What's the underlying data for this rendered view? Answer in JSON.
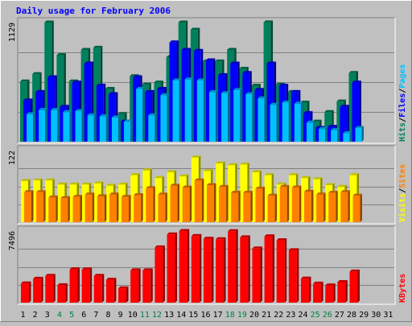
{
  "chart_data": {
    "type": "bar",
    "title": "Daily usage for February 2006",
    "days": [
      "1",
      "2",
      "3",
      "4",
      "5",
      "6",
      "7",
      "8",
      "9",
      "10",
      "11",
      "12",
      "13",
      "14",
      "15",
      "16",
      "17",
      "18",
      "19",
      "20",
      "21",
      "22",
      "23",
      "24",
      "25",
      "26",
      "27",
      "28",
      "29",
      "30",
      "31"
    ],
    "weekend_days": [
      "4",
      "5",
      "11",
      "12",
      "18",
      "19",
      "25",
      "26"
    ],
    "panels": [
      {
        "ymax_label": "1129",
        "ymax": 1129,
        "legend": [
          {
            "text": "Hits",
            "color": "#00805c"
          },
          {
            "sep": "/"
          },
          {
            "text": "Files",
            "color": "#0000ff"
          },
          {
            "sep": "/"
          },
          {
            "text": "Pages",
            "color": "#00c0ff"
          }
        ],
        "series": [
          {
            "name": "Hits",
            "color": "#00805c",
            "values": [
              570,
              640,
              1129,
              820,
              570,
              870,
              890,
              500,
              260,
              620,
              540,
              560,
              800,
              1129,
              1060,
              760,
              760,
              870,
              690,
              530,
              1130,
              540,
              470,
              370,
              190,
              280,
              380,
              650,
              0,
              0,
              0
            ]
          },
          {
            "name": "Files",
            "color": "#0000ff",
            "values": [
              390,
              470,
              610,
              330,
              560,
              740,
              530,
              450,
              190,
              610,
              470,
              500,
              940,
              870,
              860,
              770,
              630,
              740,
              650,
              490,
              740,
              530,
              470,
              270,
              130,
              140,
              330,
              560,
              0,
              0,
              0
            ]
          },
          {
            "name": "Pages",
            "color": "#00c0ff",
            "values": [
              260,
              300,
              300,
              280,
              290,
              250,
              240,
              230,
              190,
              500,
              250,
              440,
              580,
              590,
              580,
              470,
              460,
              490,
              450,
              410,
              350,
              370,
              360,
              180,
              120,
              110,
              80,
              130,
              0,
              0,
              0
            ]
          }
        ]
      },
      {
        "ymax_label": "122",
        "ymax": 122,
        "legend": [
          {
            "text": "Visits",
            "color": "#ffff00"
          },
          {
            "sep": "/"
          },
          {
            "text": "Sites",
            "color": "#ff8000"
          }
        ],
        "series": [
          {
            "name": "Visits",
            "color": "#ffff00",
            "values": [
              70,
              71,
              71,
              64,
              64,
              64,
              66,
              62,
              64,
              80,
              88,
              75,
              85,
              78,
              110,
              87,
              100,
              97,
              98,
              85,
              80,
              64,
              80,
              75,
              73,
              63,
              60,
              80,
              0,
              0,
              0
            ]
          },
          {
            "name": "Sites",
            "color": "#ff8000",
            "values": [
              51,
              51,
              42,
              41,
              43,
              47,
              44,
              47,
              43,
              46,
              58,
              47,
              62,
              59,
              71,
              63,
              60,
              50,
              50,
              57,
              45,
              60,
              59,
              52,
              47,
              50,
              51,
              45,
              0,
              0,
              0
            ]
          }
        ]
      },
      {
        "ymax_label": "7496",
        "ymax": 7496,
        "legend": [
          {
            "text": "KBytes",
            "color": "#ff0000"
          }
        ],
        "series": [
          {
            "name": "KBytes",
            "color": "#ff0000",
            "values": [
              2010,
              2500,
              2800,
              1820,
              3490,
              3470,
              2800,
              2390,
              1500,
              3380,
              3380,
              5780,
              7140,
              7496,
              6970,
              6690,
              6630,
              7470,
              6830,
              5660,
              6940,
              6530,
              5480,
              2520,
              1990,
              1800,
              2150,
              3250,
              0,
              0,
              0
            ]
          }
        ]
      }
    ]
  }
}
